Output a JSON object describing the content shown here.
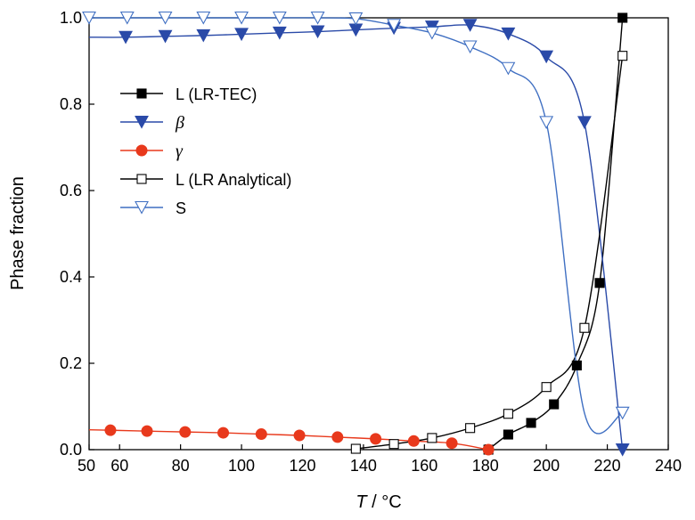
{
  "chart_data": {
    "type": "line",
    "title": "",
    "xlabel": {
      "var": "T",
      "unit": " / °C"
    },
    "ylabel": "Phase fraction",
    "xlim": [
      50,
      240
    ],
    "ylim": [
      0,
      1.0
    ],
    "xticks": [
      "50",
      "60",
      "80",
      "100",
      "120",
      "140",
      "160",
      "180",
      "200",
      "220",
      "240"
    ],
    "yticks": [
      "0.0",
      "0.2",
      "0.4",
      "0.6",
      "0.8",
      "1.0"
    ],
    "grid": false,
    "legend": "upper-left",
    "series": [
      {
        "name": "L (LR-TEC)",
        "color": "#000000",
        "marker": "square-filled",
        "x": [
          181,
          187.5,
          195,
          202.5,
          210,
          217.5,
          225
        ],
        "y": [
          0.0,
          0.035,
          0.062,
          0.105,
          0.195,
          0.386,
          1.0
        ]
      },
      {
        "name": "β",
        "color": "#2a4aa8",
        "marker": "triangle-down-filled",
        "x": [
          50,
          62,
          75,
          87.5,
          100,
          112.5,
          125,
          137.5,
          150,
          162.5,
          175,
          187.5,
          200,
          212.5,
          225
        ],
        "y": [
          0.955,
          0.955,
          0.957,
          0.959,
          0.962,
          0.965,
          0.968,
          0.972,
          0.976,
          0.979,
          0.983,
          0.963,
          0.91,
          0.758,
          0.0
        ]
      },
      {
        "name": "γ",
        "color": "#e8391c",
        "marker": "circle-filled",
        "x": [
          50,
          57,
          69,
          81.5,
          94,
          106.5,
          119,
          131.5,
          144,
          156.5,
          169,
          181
        ],
        "y": [
          0.046,
          0.045,
          0.043,
          0.041,
          0.039,
          0.036,
          0.033,
          0.029,
          0.025,
          0.02,
          0.015,
          0.0
        ]
      },
      {
        "name": "L (LR Analytical)",
        "color": "#000000",
        "marker": "square-open",
        "x": [
          137.5,
          150,
          162.5,
          175,
          187.5,
          200,
          212.5,
          225
        ],
        "y": [
          0.002,
          0.013,
          0.027,
          0.05,
          0.083,
          0.145,
          0.282,
          0.912
        ]
      },
      {
        "name": "S",
        "color": "#3f6fc2",
        "marker": "triangle-down-open",
        "x": [
          50,
          62.5,
          75,
          87.5,
          100,
          112.5,
          125,
          137.5,
          150,
          162.5,
          175,
          187.5,
          200,
          212.5,
          225
        ],
        "y": [
          1.0,
          1.0,
          1.0,
          1.0,
          1.0,
          1.0,
          1.0,
          0.998,
          0.983,
          0.965,
          0.933,
          0.883,
          0.758,
          0.085,
          0.085
        ]
      }
    ]
  }
}
